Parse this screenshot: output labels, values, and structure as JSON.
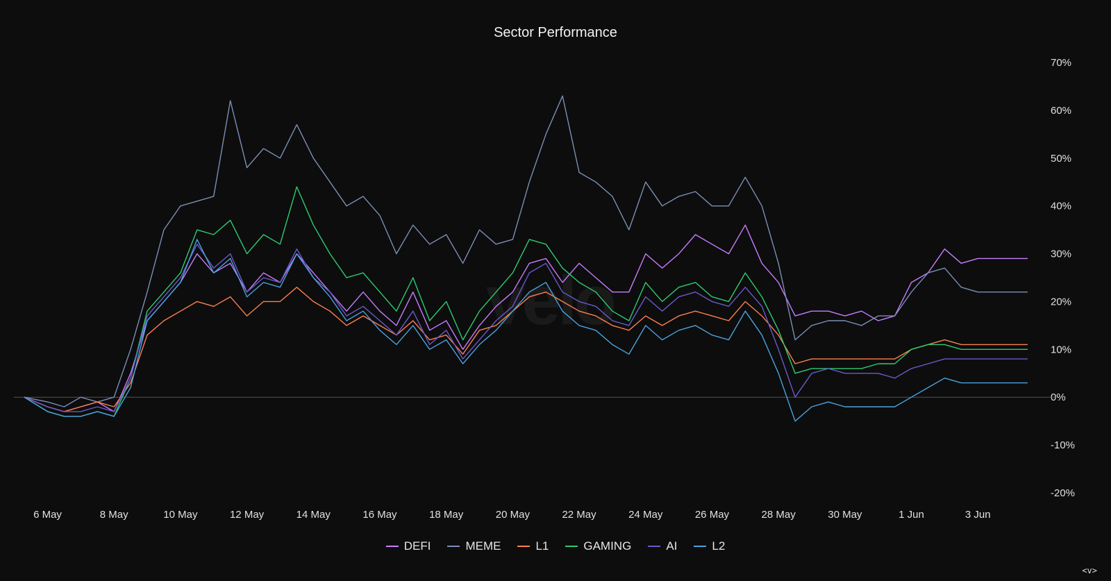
{
  "chart_data": {
    "type": "line",
    "title": "Sector Performance",
    "watermark": "velo",
    "y_ticks": [
      "70%",
      "60%",
      "50%",
      "40%",
      "30%",
      "20%",
      "10%",
      "0%",
      "-10%",
      "-20%"
    ],
    "ylim": [
      -20,
      70
    ],
    "x_tick_labels": [
      "6 May",
      "8 May",
      "10 May",
      "12 May",
      "14 May",
      "16 May",
      "18 May",
      "20 May",
      "22 May",
      "24 May",
      "26 May",
      "28 May",
      "30 May",
      "1 Jun",
      "3 Jun"
    ],
    "x_range_days": [
      5.3,
      35.5
    ],
    "x_tick_days": [
      6,
      8,
      10,
      12,
      14,
      16,
      18,
      20,
      22,
      24,
      26,
      28,
      30,
      32,
      34
    ],
    "x_days": [
      5.3,
      6,
      6.5,
      7,
      7.5,
      8,
      8.5,
      9,
      9.5,
      10,
      10.5,
      11,
      11.5,
      12,
      12.5,
      13,
      13.5,
      14,
      14.5,
      15,
      15.5,
      16,
      16.5,
      17,
      17.5,
      18,
      18.5,
      19,
      19.5,
      20,
      20.5,
      21,
      21.5,
      22,
      22.5,
      23,
      23.5,
      24,
      24.5,
      25,
      25.5,
      26,
      26.5,
      27,
      27.5,
      28,
      28.5,
      29,
      29.5,
      30,
      30.5,
      31,
      31.5,
      32,
      32.5,
      33,
      33.5,
      34,
      34.5,
      35,
      35.5
    ],
    "legend_position": "bottom",
    "grid": false,
    "series": [
      {
        "name": "DEFI",
        "color": "#c77dff",
        "values": [
          0,
          -2,
          -3,
          -2,
          -1,
          -3,
          5,
          16,
          20,
          24,
          30,
          26,
          28,
          22,
          26,
          24,
          30,
          26,
          22,
          18,
          22,
          18,
          15,
          22,
          14,
          16,
          10,
          15,
          19,
          22,
          28,
          29,
          24,
          28,
          25,
          22,
          22,
          30,
          27,
          30,
          34,
          32,
          30,
          36,
          28,
          24,
          17,
          18,
          18,
          17,
          18,
          16,
          17,
          24,
          26,
          31,
          28,
          29,
          29,
          29,
          29
        ]
      },
      {
        "name": "MEME",
        "color": "#7b8fb8",
        "values": [
          0,
          -1,
          -2,
          0,
          -1,
          0,
          10,
          22,
          35,
          40,
          41,
          42,
          62,
          48,
          52,
          50,
          57,
          50,
          45,
          40,
          42,
          38,
          30,
          36,
          32,
          34,
          28,
          35,
          32,
          33,
          45,
          55,
          63,
          47,
          45,
          42,
          35,
          45,
          40,
          42,
          43,
          40,
          40,
          46,
          40,
          28,
          12,
          15,
          16,
          16,
          15,
          17,
          17,
          22,
          26,
          27,
          23,
          22,
          22,
          22,
          22
        ]
      },
      {
        "name": "L1",
        "color": "#ff7f50",
        "values": [
          0,
          -2,
          -3,
          -2,
          -1,
          -2,
          3,
          13,
          16,
          18,
          20,
          19,
          21,
          17,
          20,
          20,
          23,
          20,
          18,
          15,
          17,
          15,
          13,
          16,
          12,
          13,
          9,
          14,
          15,
          18,
          21,
          22,
          20,
          18,
          17,
          15,
          14,
          17,
          15,
          17,
          18,
          17,
          16,
          20,
          17,
          13,
          7,
          8,
          8,
          8,
          8,
          8,
          8,
          10,
          11,
          12,
          11,
          11,
          11,
          11,
          11
        ]
      },
      {
        "name": "GAMING",
        "color": "#2ecc71",
        "values": [
          0,
          -3,
          -4,
          -4,
          -3,
          -4,
          4,
          18,
          22,
          26,
          35,
          34,
          37,
          30,
          34,
          32,
          44,
          36,
          30,
          25,
          26,
          22,
          18,
          25,
          16,
          20,
          12,
          18,
          22,
          26,
          33,
          32,
          27,
          24,
          22,
          18,
          16,
          24,
          20,
          23,
          24,
          21,
          20,
          26,
          21,
          14,
          5,
          6,
          6,
          6,
          6,
          7,
          7,
          10,
          11,
          11,
          10,
          10,
          10,
          10,
          10
        ]
      },
      {
        "name": "AI",
        "color": "#6a5acd",
        "values": [
          0,
          -2,
          -3,
          -3,
          -2,
          -3,
          4,
          17,
          21,
          25,
          32,
          27,
          30,
          22,
          25,
          24,
          31,
          25,
          22,
          17,
          19,
          16,
          13,
          18,
          11,
          14,
          8,
          12,
          16,
          19,
          26,
          28,
          22,
          20,
          19,
          16,
          15,
          21,
          18,
          21,
          22,
          20,
          19,
          23,
          19,
          10,
          0,
          5,
          6,
          5,
          5,
          5,
          4,
          6,
          7,
          8,
          8,
          8,
          8,
          8,
          8
        ]
      },
      {
        "name": "L2",
        "color": "#4aa3df",
        "values": [
          0,
          -3,
          -4,
          -4,
          -3,
          -4,
          2,
          16,
          20,
          24,
          33,
          26,
          29,
          21,
          24,
          23,
          30,
          25,
          21,
          16,
          18,
          14,
          11,
          15,
          10,
          12,
          7,
          11,
          14,
          18,
          22,
          24,
          18,
          15,
          14,
          11,
          9,
          15,
          12,
          14,
          15,
          13,
          12,
          18,
          13,
          5,
          -5,
          -2,
          -1,
          -2,
          -2,
          -2,
          -2,
          0,
          2,
          4,
          3,
          3,
          3,
          3,
          3
        ]
      }
    ]
  },
  "nav": {
    "label": "<v>"
  }
}
